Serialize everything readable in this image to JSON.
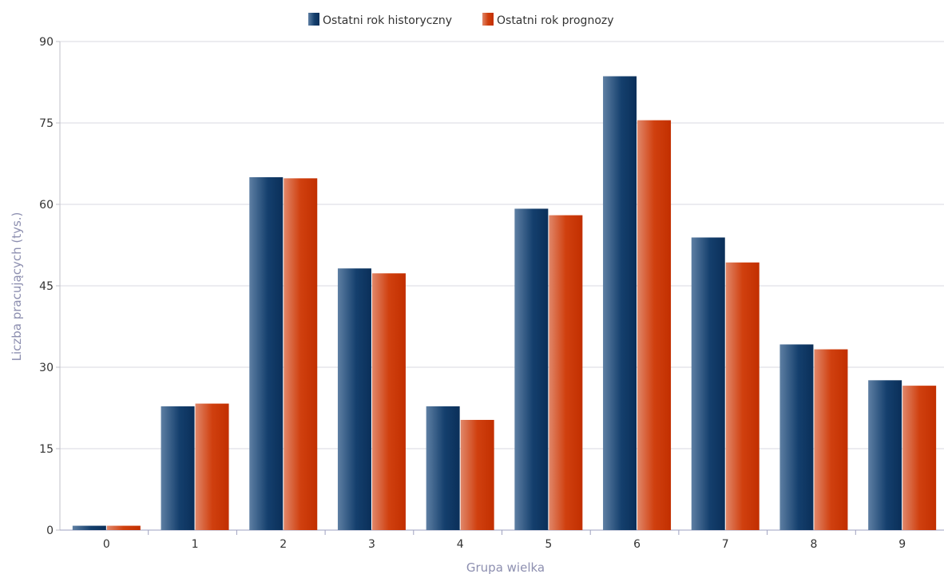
{
  "chart_data": {
    "type": "bar",
    "xlabel": "Grupa wielka",
    "ylabel": "Liczba pracujących (tys.)",
    "categories": [
      "0",
      "1",
      "2",
      "3",
      "4",
      "5",
      "6",
      "7",
      "8",
      "9"
    ],
    "series": [
      {
        "name": "Ostatni rok historyczny",
        "color": "#0f3a66",
        "values": [
          0.8,
          22.8,
          65.0,
          48.2,
          22.8,
          59.2,
          83.6,
          53.9,
          34.2,
          27.6
        ]
      },
      {
        "name": "Ostatni rok prognozy",
        "color": "#cc3300",
        "values": [
          0.8,
          23.3,
          64.8,
          47.3,
          20.3,
          58.0,
          75.5,
          49.3,
          33.3,
          26.6
        ]
      }
    ],
    "ylim": [
      0,
      90
    ],
    "yticks": [
      0,
      15,
      30,
      45,
      60,
      75,
      90
    ],
    "grid": true,
    "legend_position": "top-center"
  }
}
